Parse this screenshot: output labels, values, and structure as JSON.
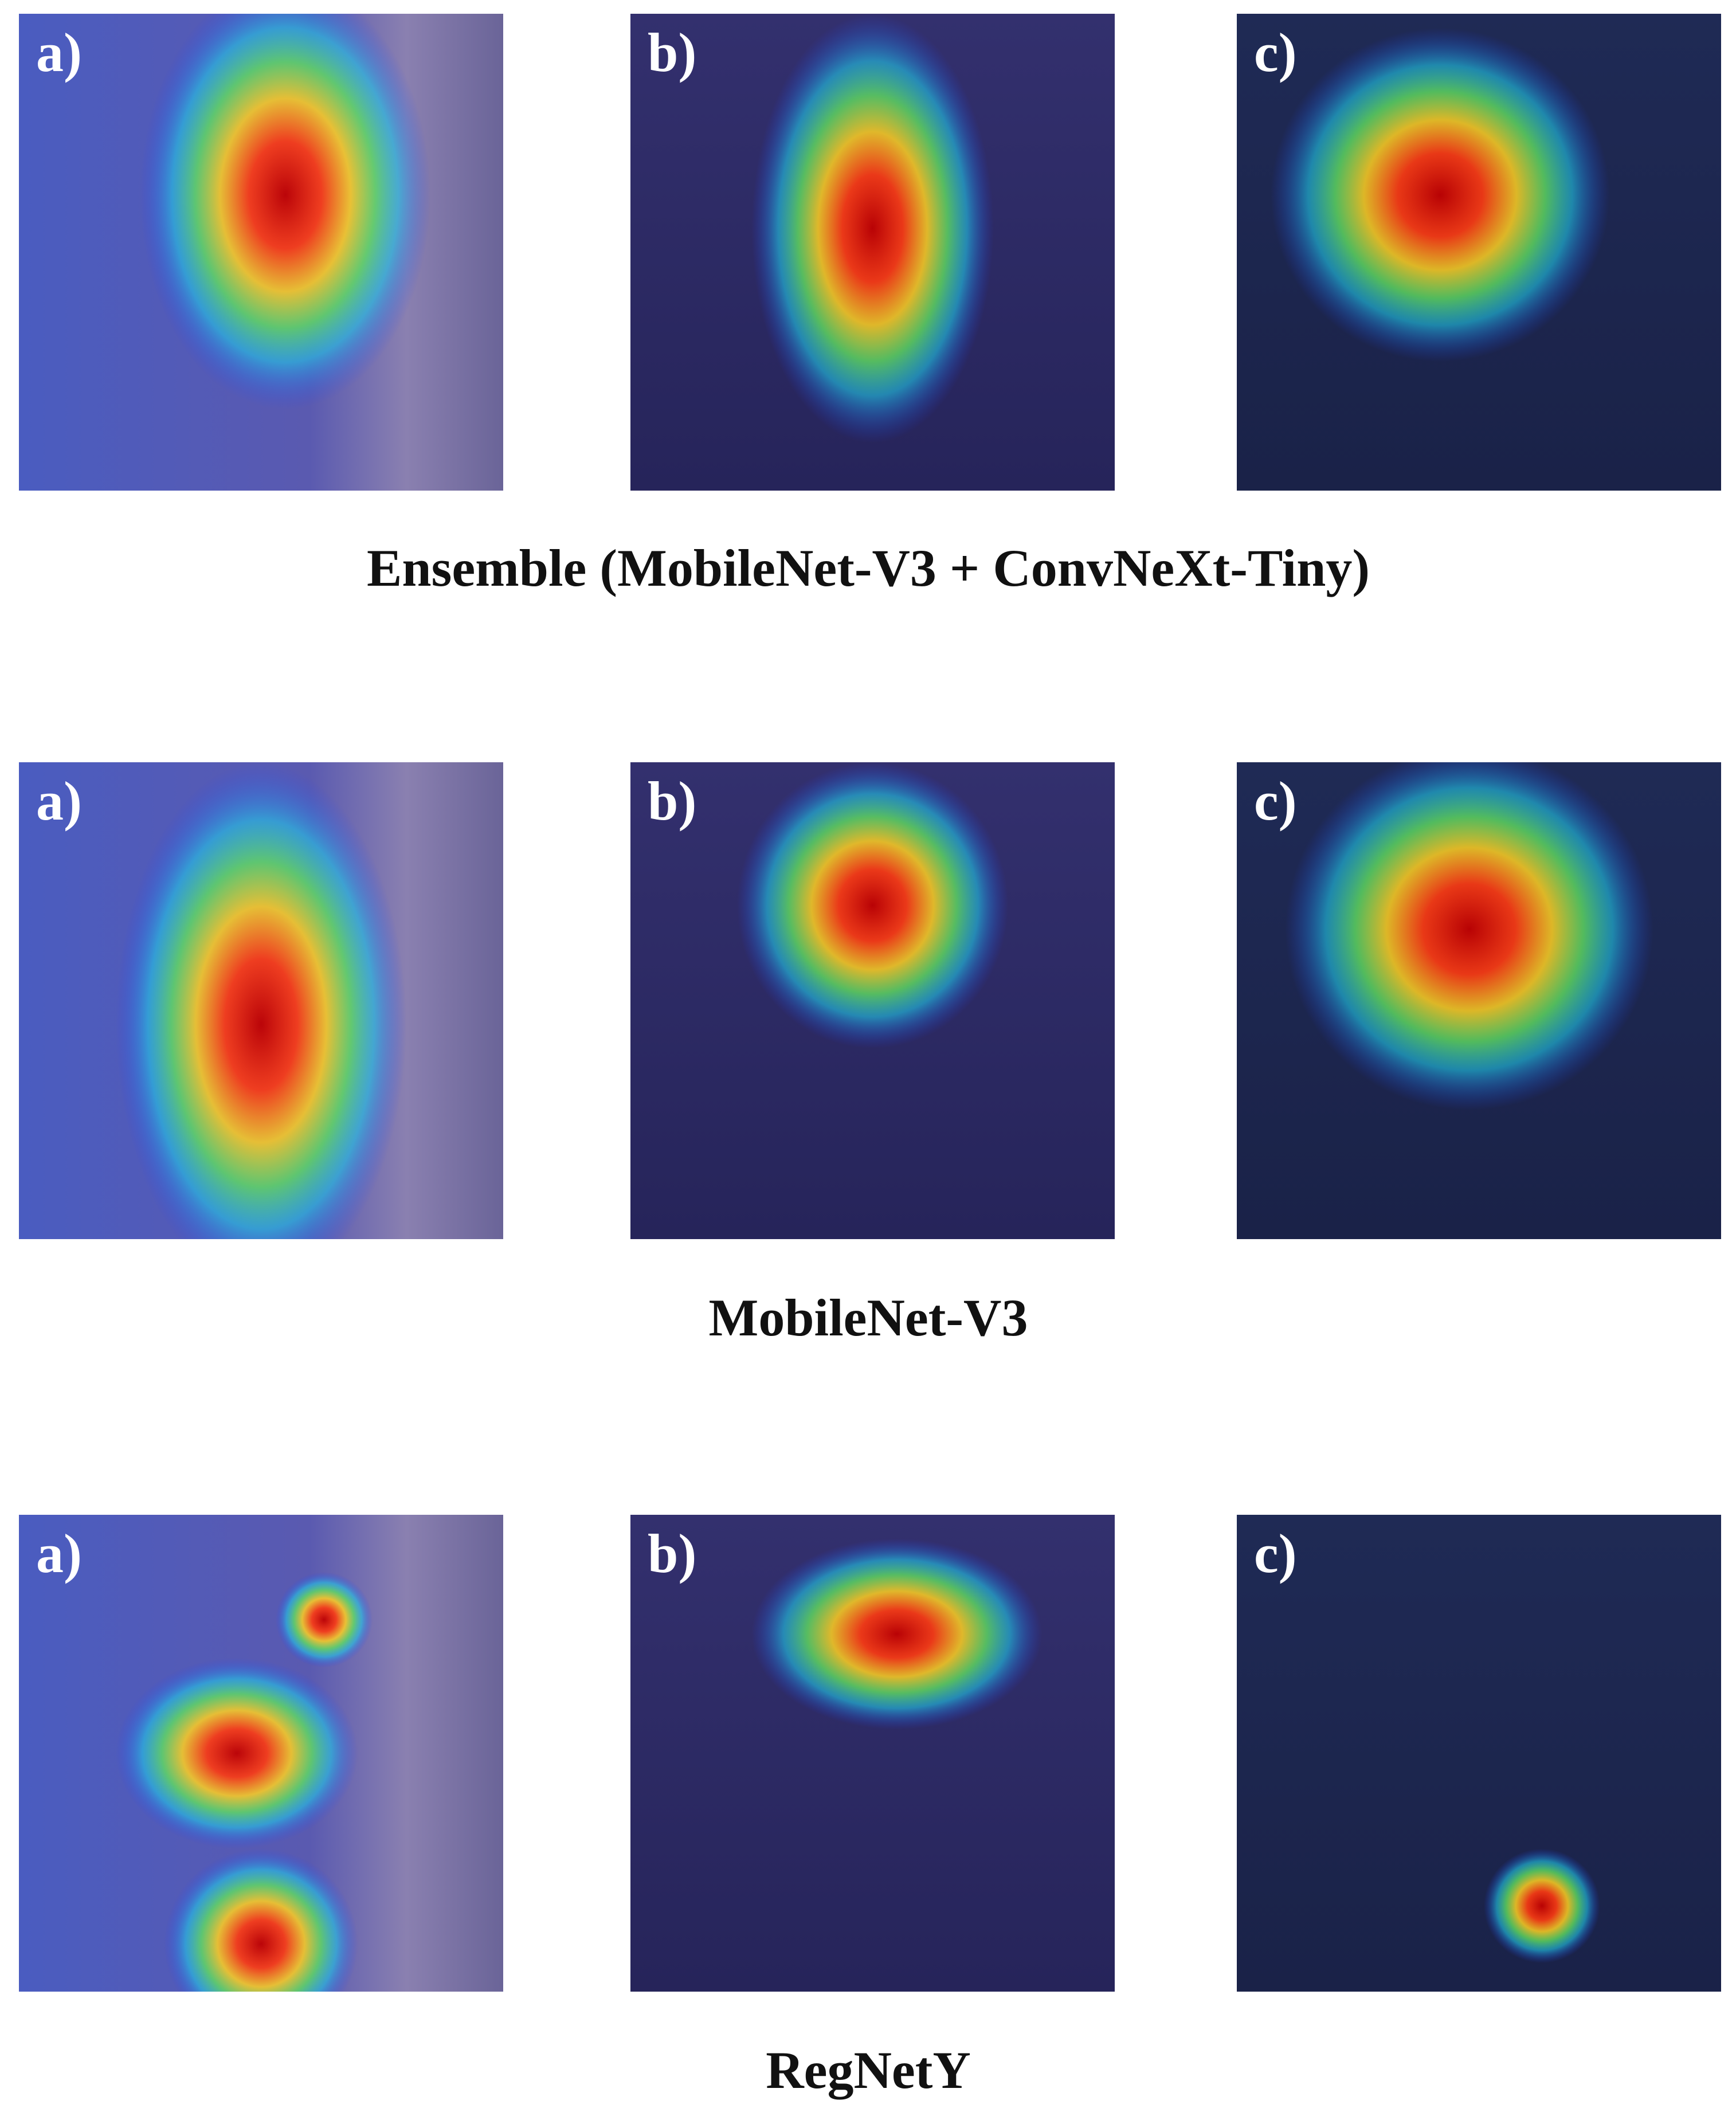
{
  "rows": [
    {
      "title": "Ensemble (MobileNet-V3 + ConvNeXt-Tiny)",
      "panels": [
        {
          "label": "a)"
        },
        {
          "label": "b)"
        },
        {
          "label": "c)"
        }
      ]
    },
    {
      "title": "MobileNet-V3",
      "panels": [
        {
          "label": "a)"
        },
        {
          "label": "b)"
        },
        {
          "label": "c)"
        }
      ]
    },
    {
      "title": "RegNetY",
      "panels": [
        {
          "label": "a)"
        },
        {
          "label": "b)"
        },
        {
          "label": "c)"
        }
      ]
    }
  ]
}
